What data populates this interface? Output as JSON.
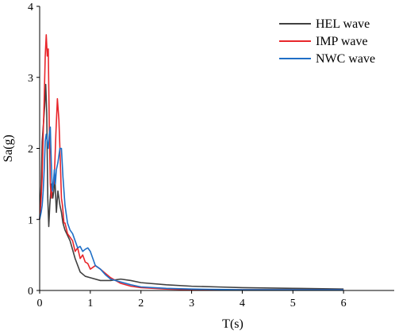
{
  "chart_data": {
    "type": "line",
    "title": "",
    "xlabel": "T(s)",
    "ylabel": "Sa(g)",
    "xlim": [
      0,
      7
    ],
    "ylim": [
      0,
      4
    ],
    "x_ticks": [
      0,
      1,
      2,
      3,
      4,
      5,
      6
    ],
    "y_ticks": [
      0,
      1,
      2,
      3,
      4
    ],
    "grid": false,
    "legend_position": "top-right",
    "series": [
      {
        "name": "HEL wave",
        "color": "#404040",
        "x": [
          0,
          0.03,
          0.05,
          0.08,
          0.1,
          0.12,
          0.14,
          0.16,
          0.18,
          0.2,
          0.23,
          0.26,
          0.28,
          0.3,
          0.33,
          0.36,
          0.38,
          0.4,
          0.43,
          0.46,
          0.5,
          0.6,
          0.7,
          0.8,
          0.9,
          1.0,
          1.2,
          1.4,
          1.6,
          1.8,
          2.0,
          2.5,
          3.0,
          3.5,
          4.0,
          5.0,
          6.0
        ],
        "y": [
          1.0,
          1.5,
          2.1,
          2.4,
          2.6,
          2.9,
          2.5,
          1.3,
          0.9,
          1.2,
          1.5,
          1.3,
          1.4,
          1.6,
          1.1,
          1.4,
          1.3,
          1.2,
          1.1,
          0.95,
          0.85,
          0.7,
          0.45,
          0.26,
          0.2,
          0.18,
          0.14,
          0.14,
          0.16,
          0.14,
          0.11,
          0.08,
          0.06,
          0.05,
          0.04,
          0.03,
          0.02
        ]
      },
      {
        "name": "IMP wave",
        "color": "#e8262b",
        "x": [
          0,
          0.03,
          0.05,
          0.07,
          0.09,
          0.11,
          0.13,
          0.15,
          0.17,
          0.19,
          0.21,
          0.23,
          0.25,
          0.28,
          0.3,
          0.32,
          0.35,
          0.38,
          0.4,
          0.43,
          0.45,
          0.48,
          0.5,
          0.55,
          0.6,
          0.65,
          0.7,
          0.75,
          0.8,
          0.85,
          0.9,
          0.95,
          1.0,
          1.1,
          1.2,
          1.3,
          1.4,
          1.6,
          1.8,
          2.0,
          2.5,
          3.0,
          4.0,
          5.0,
          6.0
        ],
        "y": [
          1.0,
          1.3,
          1.6,
          2.2,
          2.7,
          3.3,
          3.6,
          3.3,
          3.4,
          2.3,
          1.5,
          1.3,
          1.5,
          1.5,
          1.8,
          2.2,
          2.7,
          2.4,
          2.0,
          1.3,
          1.2,
          0.95,
          0.95,
          0.8,
          0.75,
          0.7,
          0.55,
          0.6,
          0.45,
          0.5,
          0.4,
          0.38,
          0.3,
          0.35,
          0.3,
          0.24,
          0.18,
          0.1,
          0.06,
          0.04,
          0.02,
          0.01,
          0.01,
          0.01,
          0.01
        ]
      },
      {
        "name": "NWC wave",
        "color": "#1f6fc6",
        "x": [
          0,
          0.03,
          0.05,
          0.07,
          0.09,
          0.11,
          0.13,
          0.15,
          0.17,
          0.19,
          0.21,
          0.23,
          0.25,
          0.27,
          0.29,
          0.31,
          0.33,
          0.36,
          0.4,
          0.43,
          0.46,
          0.5,
          0.55,
          0.6,
          0.65,
          0.7,
          0.75,
          0.8,
          0.85,
          0.9,
          0.95,
          1.0,
          1.05,
          1.1,
          1.2,
          1.3,
          1.4,
          1.6,
          1.8,
          2.0,
          2.5,
          3.0,
          4.0,
          5.0,
          6.0
        ],
        "y": [
          1.0,
          1.1,
          1.2,
          1.4,
          1.7,
          2.1,
          2.2,
          2.1,
          2.0,
          2.2,
          2.3,
          1.8,
          1.4,
          1.5,
          1.7,
          1.5,
          1.7,
          1.8,
          2.0,
          2.0,
          1.6,
          1.2,
          0.95,
          0.85,
          0.8,
          0.7,
          0.6,
          0.62,
          0.55,
          0.58,
          0.6,
          0.55,
          0.45,
          0.35,
          0.3,
          0.22,
          0.16,
          0.12,
          0.08,
          0.05,
          0.03,
          0.02,
          0.01,
          0.01,
          0.01
        ]
      }
    ]
  }
}
